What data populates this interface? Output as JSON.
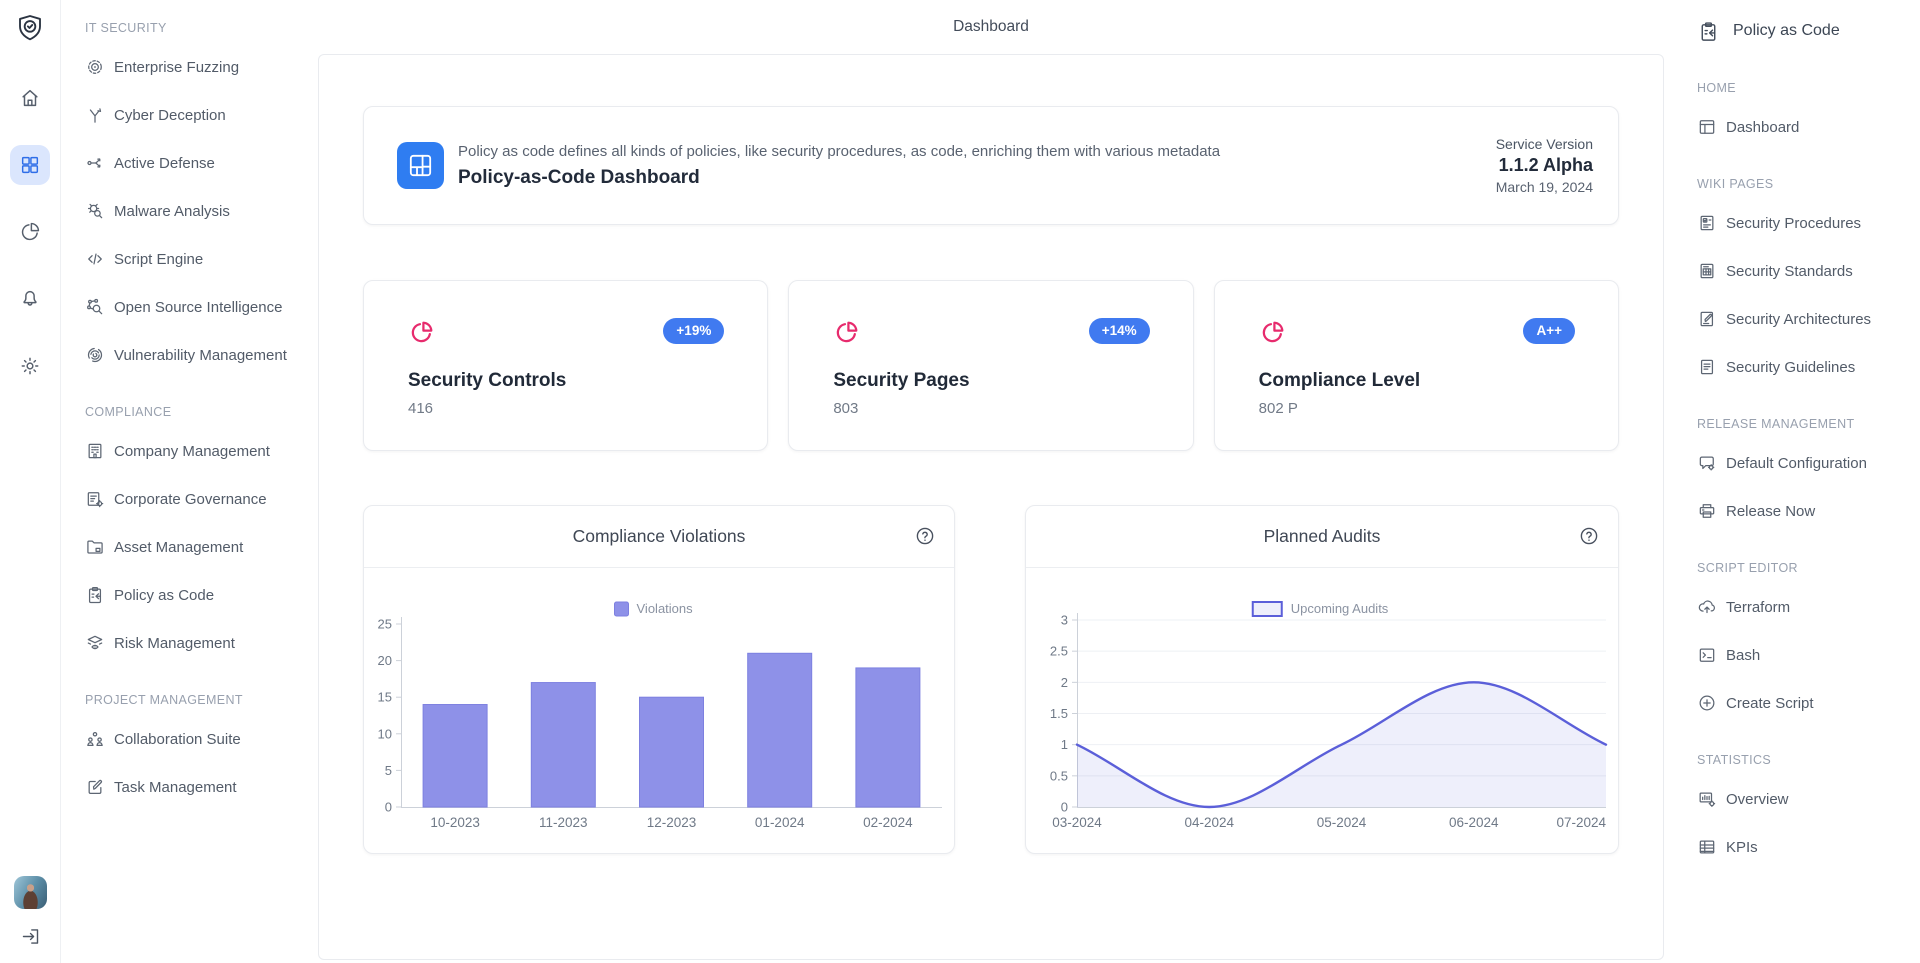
{
  "page": {
    "title": "Dashboard"
  },
  "colors": {
    "accent_blue": "#407af0",
    "hero_blue": "#2f7df1",
    "pink": "#e72b6d",
    "bar_purple": "#8e91e8",
    "line_purple": "#5b5fd9",
    "active_rail_bg": "#dbe6fd"
  },
  "rail": {
    "logo_icon": "shield-check",
    "items": [
      {
        "icon": "home",
        "name": "home",
        "active": false
      },
      {
        "icon": "grid",
        "name": "apps",
        "active": true
      },
      {
        "icon": "pie-chart",
        "name": "analytics",
        "active": false
      },
      {
        "icon": "bell",
        "name": "notifications",
        "active": false
      },
      {
        "icon": "gear",
        "name": "settings",
        "active": false
      }
    ],
    "avatar": "user-avatar",
    "logout_icon": "logout"
  },
  "left_sidebar": {
    "sections": [
      {
        "label": "IT SECURITY",
        "items": [
          {
            "icon": "target",
            "label": "Enterprise Fuzzing"
          },
          {
            "icon": "branch-arrow",
            "label": "Cyber Deception"
          },
          {
            "icon": "flow-arrows",
            "label": "Active Defense"
          },
          {
            "icon": "bug-search",
            "label": "Malware Analysis"
          },
          {
            "icon": "code",
            "label": "Script Engine"
          },
          {
            "icon": "network-search",
            "label": "Open Source Intelligence"
          },
          {
            "icon": "fingerprint",
            "label": "Vulnerability Management"
          }
        ]
      },
      {
        "label": "COMPLIANCE",
        "items": [
          {
            "icon": "building",
            "label": "Company Management"
          },
          {
            "icon": "list-gear",
            "label": "Corporate Governance"
          },
          {
            "icon": "folder-box",
            "label": "Asset Management"
          },
          {
            "icon": "clipboard-code",
            "label": "Policy as Code"
          },
          {
            "icon": "layers-eye",
            "label": "Risk Management"
          }
        ]
      },
      {
        "label": "PROJECT MANAGEMENT",
        "items": [
          {
            "icon": "users-group",
            "label": "Collaboration Suite"
          },
          {
            "icon": "edit-square",
            "label": "Task Management"
          }
        ]
      }
    ]
  },
  "hero": {
    "icon": "layout-blocks",
    "description": "Policy as code defines all kinds of policies, like security procedures, as code, enriching them with various metadata",
    "title": "Policy-as-Code Dashboard",
    "service_version_label": "Service Version",
    "version": "1.1.2 Alpha",
    "date": "March 19, 2024"
  },
  "stats": [
    {
      "icon": "pie-pink",
      "title": "Security Controls",
      "value": "416",
      "badge": "+19%"
    },
    {
      "icon": "pie-pink",
      "title": "Security Pages",
      "value": "803",
      "badge": "+14%"
    },
    {
      "icon": "pie-pink",
      "title": "Compliance Level",
      "value": "802 P",
      "badge": "A++"
    }
  ],
  "chart_data": [
    {
      "type": "bar",
      "title": "Compliance Violations",
      "legend": "Violations",
      "categories": [
        "10-2023",
        "11-2023",
        "12-2023",
        "01-2024",
        "02-2024"
      ],
      "values": [
        14,
        17,
        15,
        21,
        19
      ],
      "ylim": [
        0,
        25
      ],
      "ytick_step": 5,
      "grid": false,
      "legend_position": "top-center",
      "bar_color": "#8e91e8",
      "bar_border": "#7d80e0"
    },
    {
      "type": "line",
      "title": "Planned Audits",
      "legend": "Upcoming Audits",
      "categories": [
        "03-2024",
        "04-2024",
        "05-2024",
        "06-2024",
        "07-2024"
      ],
      "values": [
        1,
        0,
        1,
        2,
        1
      ],
      "ylim": [
        0,
        3
      ],
      "ytick_step": 0.5,
      "grid": true,
      "legend_position": "top-center",
      "line_color": "#5b5fd9",
      "fill_color": "rgba(92,97,216,0.10)",
      "smooth": true,
      "area": true
    }
  ],
  "right_sidebar": {
    "header": {
      "icon": "clipboard-code",
      "label": "Policy as Code"
    },
    "sections": [
      {
        "label": "HOME",
        "items": [
          {
            "icon": "layout-window",
            "label": "Dashboard"
          }
        ]
      },
      {
        "label": "WIKI PAGES",
        "items": [
          {
            "icon": "doc-check",
            "label": "Security Procedures"
          },
          {
            "icon": "doc-table",
            "label": "Security Standards"
          },
          {
            "icon": "doc-edit",
            "label": "Security Architectures"
          },
          {
            "icon": "doc-lines",
            "label": "Security Guidelines"
          }
        ]
      },
      {
        "label": "RELEASE MANAGEMENT",
        "items": [
          {
            "icon": "bubble-gear",
            "label": "Default Configuration"
          },
          {
            "icon": "printer",
            "label": "Release Now"
          }
        ]
      },
      {
        "label": "SCRIPT EDITOR",
        "items": [
          {
            "icon": "cloud-up",
            "label": "Terraform"
          },
          {
            "icon": "terminal",
            "label": "Bash"
          },
          {
            "icon": "plus-circle",
            "label": "Create Script"
          }
        ]
      },
      {
        "label": "STATISTICS",
        "items": [
          {
            "icon": "board-chart",
            "label": "Overview"
          },
          {
            "icon": "table",
            "label": "KPIs"
          }
        ]
      }
    ]
  }
}
